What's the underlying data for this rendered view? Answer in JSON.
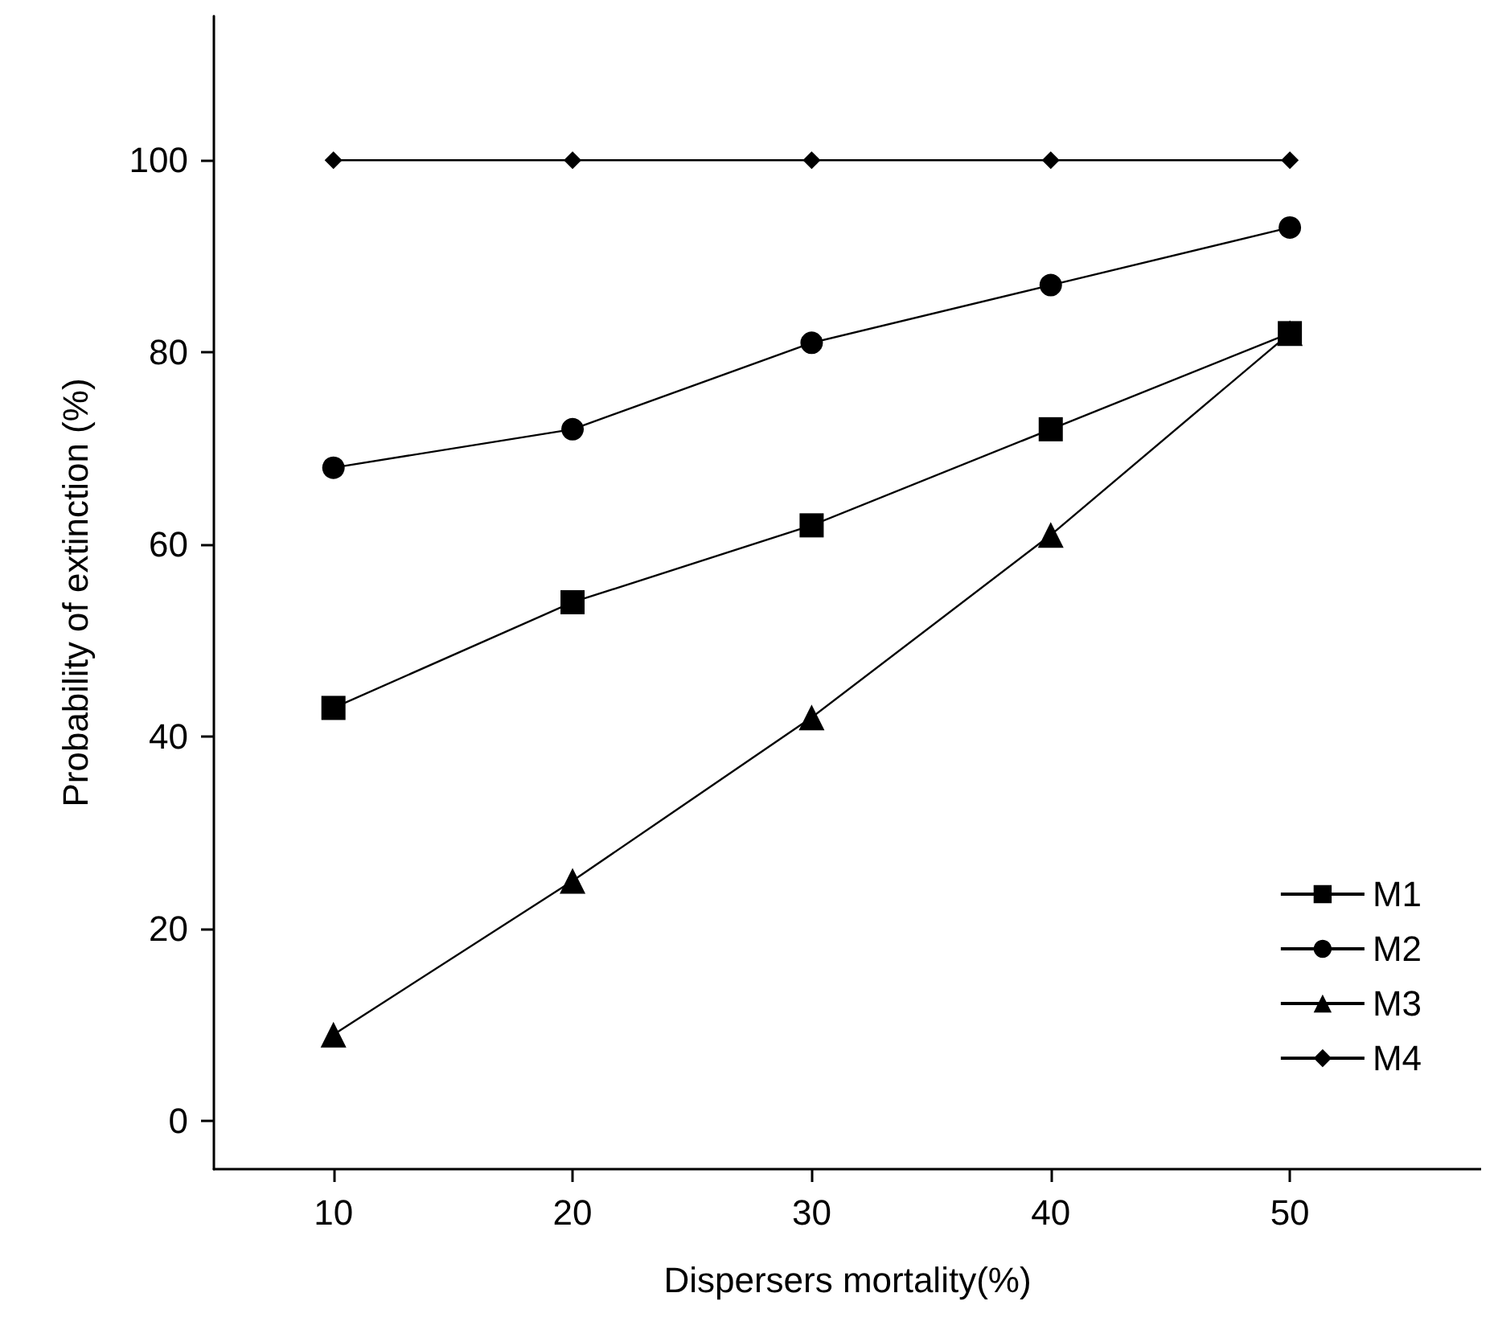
{
  "chart_data": {
    "type": "line",
    "xlabel": "Dispersers mortality(%)",
    "ylabel": "Probability of extinction (%)",
    "x": [
      10,
      20,
      30,
      40,
      50
    ],
    "xlim": [
      5,
      58
    ],
    "xticks": [
      10,
      20,
      30,
      40,
      50
    ],
    "ylim": [
      -5,
      115
    ],
    "yticks": [
      0,
      20,
      40,
      60,
      80,
      100
    ],
    "grid": false,
    "legend": "bottom right",
    "line_style": "solid",
    "series": [
      {
        "name": "M1",
        "color": "#000000",
        "marker": "square",
        "values": [
          43,
          54,
          62,
          72,
          82
        ]
      },
      {
        "name": "M2",
        "color": "#000000",
        "marker": "circle",
        "values": [
          68,
          72,
          81,
          87,
          93
        ]
      },
      {
        "name": "M3",
        "color": "#000000",
        "marker": "triangle",
        "values": [
          9,
          25,
          42,
          61,
          82
        ]
      },
      {
        "name": "M4",
        "color": "#000000",
        "marker": "diamond",
        "values": [
          100,
          100,
          100,
          100,
          100
        ]
      }
    ]
  }
}
